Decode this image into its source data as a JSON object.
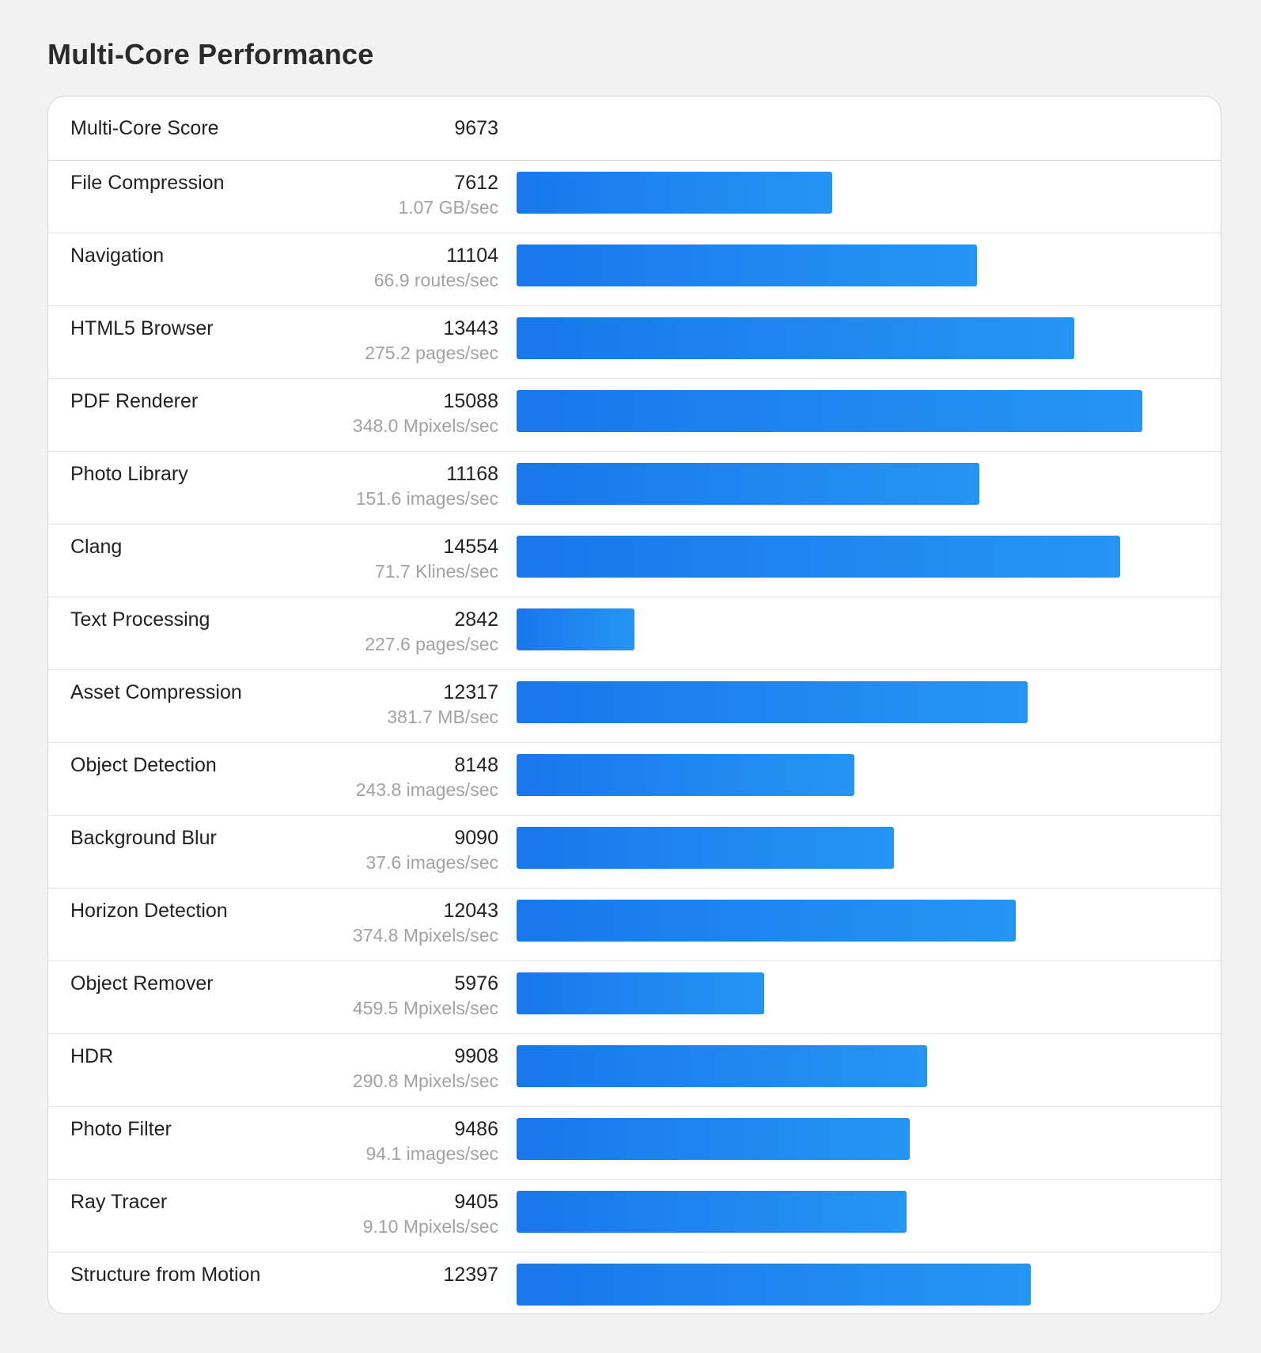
{
  "page": {
    "title": "Multi-Core Performance"
  },
  "summary": {
    "label": "Multi-Core Score",
    "score": "9673"
  },
  "colors": {
    "bar_start": "#1877ec",
    "bar_end": "#2595f4"
  },
  "chart_data": {
    "type": "bar",
    "orientation": "horizontal",
    "title": "Multi-Core Performance",
    "xlim": [
      0,
      15088
    ],
    "categories": [
      "File Compression",
      "Navigation",
      "HTML5 Browser",
      "PDF Renderer",
      "Photo Library",
      "Clang",
      "Text Processing",
      "Asset Compression",
      "Object Detection",
      "Background Blur",
      "Horizon Detection",
      "Object Remover",
      "HDR",
      "Photo Filter",
      "Ray Tracer",
      "Structure from Motion"
    ],
    "values": [
      7612,
      11104,
      13443,
      15088,
      11168,
      14554,
      2842,
      12317,
      8148,
      9090,
      12043,
      5976,
      9908,
      9486,
      9405,
      12397
    ],
    "rates": [
      "1.07 GB/sec",
      "66.9 routes/sec",
      "275.2 pages/sec",
      "348.0 Mpixels/sec",
      "151.6 images/sec",
      "71.7 Klines/sec",
      "227.6 pages/sec",
      "381.7 MB/sec",
      "243.8 images/sec",
      "37.6 images/sec",
      "374.8 Mpixels/sec",
      "459.5 Mpixels/sec",
      "290.8 Mpixels/sec",
      "94.1 images/sec",
      "9.10 Mpixels/sec",
      ""
    ]
  }
}
